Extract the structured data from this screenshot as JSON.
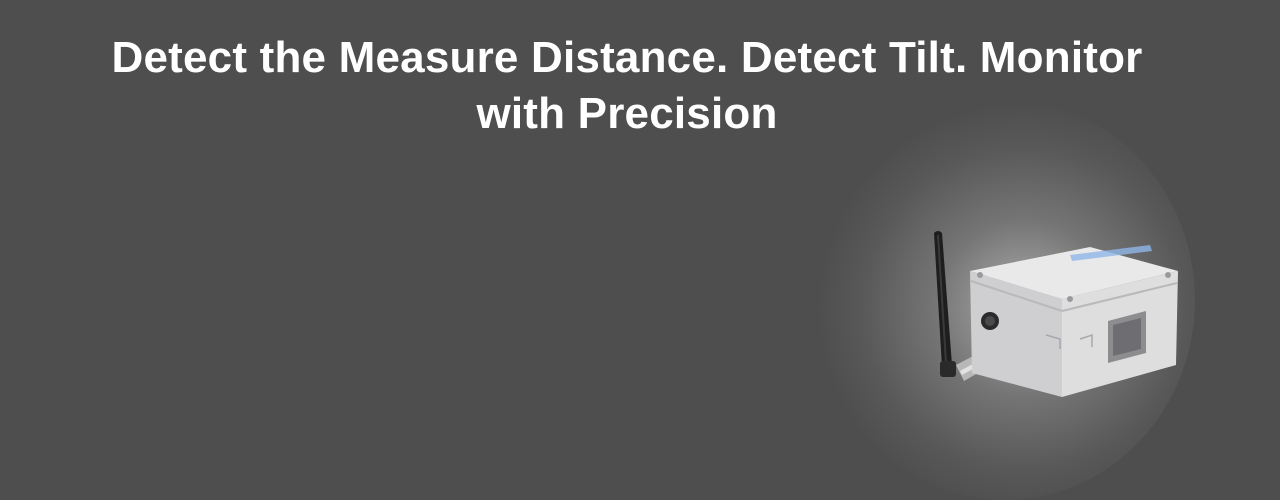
{
  "banner": {
    "headline_line1": "Detect the Measure Distance. Detect Tilt. Monitor",
    "headline_line2": "with Precision"
  },
  "device": {
    "brand_text": "",
    "icon": "sensor-device-icon"
  },
  "colors": {
    "background": "#4e4e4e",
    "text": "#ffffff",
    "accent_blue": "#2a4fd6"
  }
}
